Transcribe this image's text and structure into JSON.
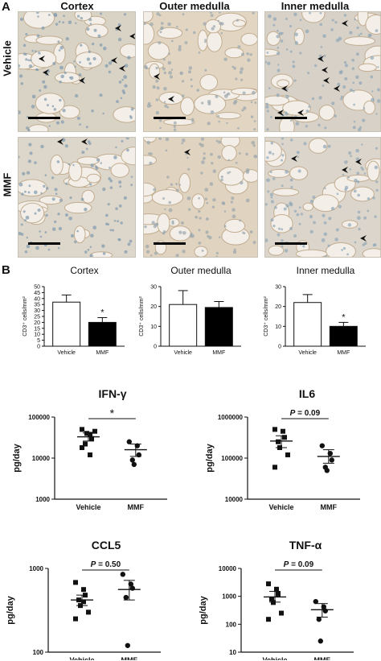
{
  "panel_labels": {
    "a": "A",
    "b": "B"
  },
  "histology": {
    "columns": [
      "Cortex",
      "Outer medulla",
      "Inner medulla"
    ],
    "rows": [
      "Vehicle",
      "MMF"
    ]
  },
  "chart_data": [
    {
      "type": "bar",
      "title": "Cortex",
      "ylabel": "CD3⁺ cells/mm²",
      "categories": [
        "Vehicle",
        "MMF"
      ],
      "values": [
        37,
        20
      ],
      "errors": [
        6,
        4
      ],
      "ylim": [
        0,
        50
      ],
      "yticks": [
        "0",
        "5",
        "10",
        "15",
        "20",
        "25",
        "30",
        "35",
        "40",
        "45",
        "50"
      ],
      "tick_values": [
        0,
        5,
        10,
        15,
        20,
        25,
        30,
        35,
        40,
        45,
        50
      ],
      "fills": [
        "#ffffff",
        "#000000"
      ],
      "significance": "*",
      "grid": false
    },
    {
      "type": "bar",
      "title": "Outer medulla",
      "ylabel": "CD3⁺ cells/mm²",
      "categories": [
        "Vehicle",
        "MMF"
      ],
      "values": [
        21,
        19.5
      ],
      "errors": [
        7,
        3
      ],
      "ylim": [
        0,
        30
      ],
      "yticks": [
        "0",
        "10",
        "20",
        "30"
      ],
      "tick_values": [
        0,
        10,
        20,
        30
      ],
      "fills": [
        "#ffffff",
        "#000000"
      ],
      "significance": "",
      "grid": false
    },
    {
      "type": "bar",
      "title": "Inner medulla",
      "ylabel": "CD3⁺ cells/mm²",
      "categories": [
        "Vehicle",
        "MMF"
      ],
      "values": [
        22,
        10
      ],
      "errors": [
        4,
        2
      ],
      "ylim": [
        0,
        30
      ],
      "yticks": [
        "0",
        "10",
        "20",
        "30"
      ],
      "tick_values": [
        0,
        10,
        20,
        30
      ],
      "fills": [
        "#ffffff",
        "#000000"
      ],
      "significance": "*",
      "grid": false
    },
    {
      "type": "scatter",
      "title": "IFN-γ",
      "ylabel": "pg/day",
      "scale": "log",
      "ylim": [
        1000,
        100000
      ],
      "yticks": [
        "1000",
        "10000",
        "100000"
      ],
      "tick_values": [
        1000,
        10000,
        100000
      ],
      "categories": [
        "Vehicle",
        "MMF"
      ],
      "series": [
        {
          "values": [
            50000,
            38000,
            30000,
            22000,
            40000,
            45000,
            18000,
            12000
          ],
          "mean": 33000,
          "sem_low": 26000,
          "sem_high": 41000,
          "marker": "square"
        },
        {
          "values": [
            25000,
            20000,
            12000,
            9000,
            7000
          ],
          "mean": 16000,
          "sem_low": 11000,
          "sem_high": 22000,
          "marker": "circle"
        }
      ],
      "significance": "*",
      "grid": false
    },
    {
      "type": "scatter",
      "title": "IL6",
      "ylabel": "pg/day",
      "scale": "log",
      "ylim": [
        10000,
        1000000
      ],
      "yticks": [
        "10000",
        "100000",
        "1000000"
      ],
      "tick_values": [
        10000,
        100000,
        1000000
      ],
      "categories": [
        "Vehicle",
        "MMF"
      ],
      "series": [
        {
          "values": [
            500000,
            450000,
            320000,
            250000,
            180000,
            120000,
            60000
          ],
          "mean": 260000,
          "sem_low": 180000,
          "sem_high": 350000,
          "marker": "square"
        },
        {
          "values": [
            200000,
            130000,
            90000,
            60000,
            50000
          ],
          "mean": 110000,
          "sem_low": 75000,
          "sem_high": 160000,
          "marker": "circle"
        }
      ],
      "significance": "P = 0.09",
      "grid": false
    },
    {
      "type": "scatter",
      "title": "CCL5",
      "ylabel": "pg/day",
      "scale": "log",
      "ylim": [
        100,
        1000
      ],
      "yticks": [
        "100",
        "1000"
      ],
      "tick_values": [
        100,
        1000
      ],
      "categories": [
        "Vehicle",
        "MMF"
      ],
      "series": [
        {
          "values": [
            680,
            560,
            480,
            420,
            360,
            300,
            250,
            400
          ],
          "mean": 420,
          "sem_low": 360,
          "sem_high": 480,
          "marker": "square"
        },
        {
          "values": [
            850,
            650,
            580,
            450,
            120
          ],
          "mean": 560,
          "sem_low": 420,
          "sem_high": 720,
          "marker": "circle"
        }
      ],
      "significance": "P = 0.50",
      "grid": false
    },
    {
      "type": "scatter",
      "title": "TNF-α",
      "ylabel": "pg/day",
      "scale": "log",
      "ylim": [
        10,
        10000
      ],
      "yticks": [
        "10",
        "100",
        "1000",
        "10000"
      ],
      "tick_values": [
        10,
        100,
        1000,
        10000
      ],
      "categories": [
        "Vehicle",
        "MMF"
      ],
      "series": [
        {
          "values": [
            2800,
            1800,
            1200,
            800,
            600,
            250,
            150
          ],
          "mean": 950,
          "sem_low": 620,
          "sem_high": 1500,
          "marker": "square"
        },
        {
          "values": [
            650,
            420,
            300,
            150,
            25
          ],
          "mean": 330,
          "sem_low": 180,
          "sem_high": 550,
          "marker": "circle"
        }
      ],
      "significance": "P = 0.09",
      "grid": false
    }
  ]
}
